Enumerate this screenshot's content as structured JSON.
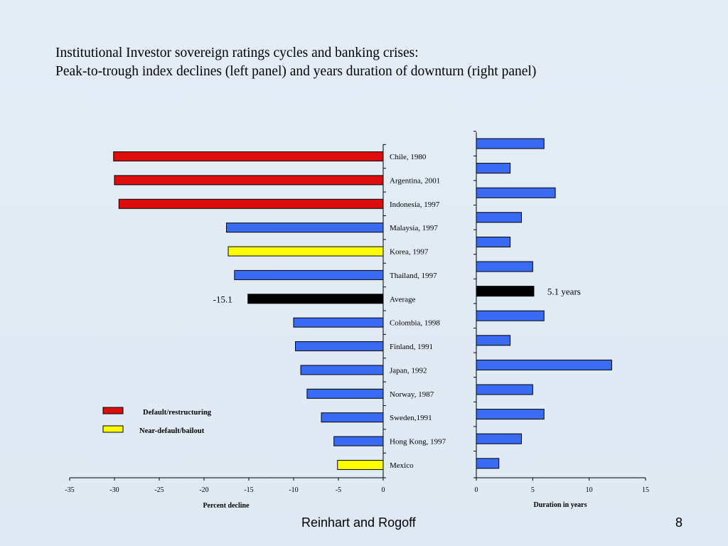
{
  "slide": {
    "title_line1": "Institutional Investor sovereign ratings cycles and banking crises:",
    "title_line2": "Peak-to-trough index declines (left panel) and years duration of downturn (right panel)",
    "footer": "Reinhart and Rogoff",
    "page_number": "8"
  },
  "legend": [
    {
      "label": "Default/restructuring",
      "color": "#dd0d0d"
    },
    {
      "label": "Near-default/bailout",
      "color": "#ffff00"
    }
  ],
  "colors": {
    "default": "#dd0d0d",
    "near": "#ffff00",
    "other": "#3a6bf5",
    "average": "#000000"
  },
  "chart_data": [
    {
      "type": "bar",
      "orientation": "horizontal",
      "panel": "left",
      "xlabel": "Percent decline",
      "xlim": [
        -35,
        0
      ],
      "xticks": [
        -35,
        -30,
        -25,
        -20,
        -15,
        -10,
        -5,
        0
      ],
      "categories": [
        "Chile, 1980",
        "Argentina, 2001",
        "Indonesia, 1997",
        "Malaysia, 1997",
        "Korea, 1997",
        "Thailand, 1997",
        "Average",
        "Colombia, 1998",
        "Finland, 1991",
        "Japan, 1992",
        "Norway, 1987",
        "Sweden,1991",
        "Hong Kong, 1997",
        "Mexico"
      ],
      "values": [
        -30.1,
        -30.0,
        -29.5,
        -17.5,
        -17.3,
        -16.6,
        -15.1,
        -10.0,
        -9.8,
        -9.2,
        -8.5,
        -6.9,
        -5.5,
        -5.1
      ],
      "bar_groups": [
        "default",
        "default",
        "default",
        "other",
        "near",
        "other",
        "average",
        "other",
        "other",
        "other",
        "other",
        "other",
        "other",
        "near"
      ],
      "annotation": "-15.1"
    },
    {
      "type": "bar",
      "orientation": "horizontal",
      "panel": "right",
      "xlabel": "Duration in years",
      "xlim": [
        0,
        15
      ],
      "xticks": [
        0,
        5,
        10,
        15
      ],
      "categories": [
        "Chile, 1980",
        "Argentina, 2001",
        "Indonesia, 1997",
        "Malaysia, 1997",
        "Korea, 1997",
        "Thailand, 1997",
        "Average",
        "Colombia, 1998",
        "Finland, 1991",
        "Japan, 1992",
        "Norway, 1987",
        "Sweden,1991",
        "Hong Kong, 1997",
        "Mexico"
      ],
      "values": [
        6,
        3,
        7,
        4,
        3,
        5,
        5.1,
        6,
        3,
        12,
        5,
        6,
        4,
        2
      ],
      "bar_groups": [
        "other",
        "other",
        "other",
        "other",
        "other",
        "other",
        "average",
        "other",
        "other",
        "other",
        "other",
        "other",
        "other",
        "other"
      ],
      "annotation": "5.1 years"
    }
  ]
}
